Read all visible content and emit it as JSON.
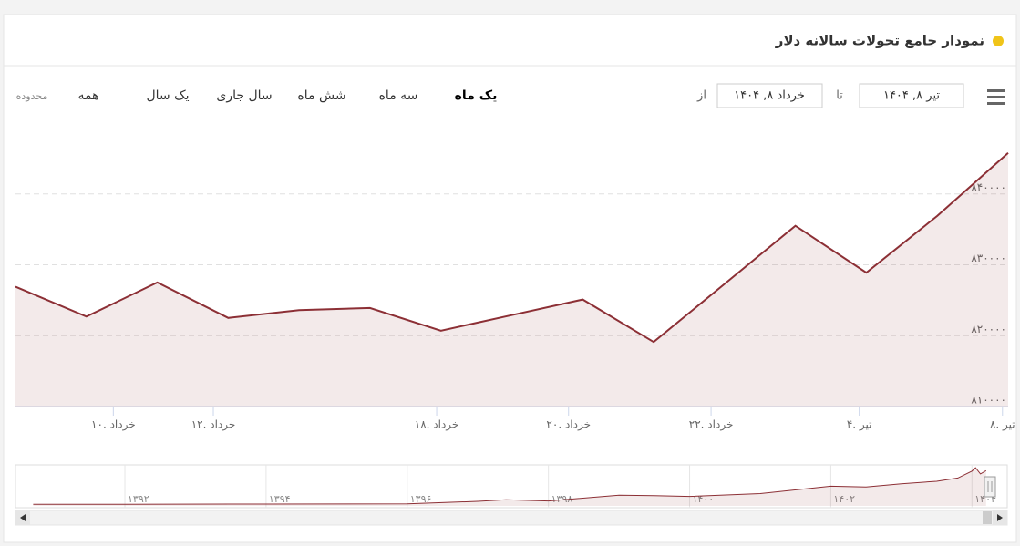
{
  "header": {
    "title": "نمودار جامع تحولات سالانه دلار"
  },
  "toolbar": {
    "from_label": "از",
    "from_date": "خرداد ۸, ۱۴۰۴",
    "to_label": "تا",
    "to_date": "تیر ۸, ۱۴۰۴",
    "ranges": [
      "یک ماه",
      "سه ماه",
      "شش ماه",
      "سال جاری",
      "یک سال",
      "همه"
    ],
    "range_label": "محدوده"
  },
  "chart_data": [
    {
      "type": "area",
      "color": "#8c2f35",
      "values": [
        826900,
        822700,
        827500,
        822500,
        823600,
        823900,
        820700,
        822900,
        825100,
        819100,
        827300,
        835500,
        828900,
        836900,
        845800
      ],
      "xlim": [
        0,
        14
      ],
      "xticks": [
        {
          "value": 1.38,
          "label": "۱۰. خرداد"
        },
        {
          "value": 2.79,
          "label": "۱۲. خرداد"
        },
        {
          "value": 5.94,
          "label": "۱۸. خرداد"
        },
        {
          "value": 7.8,
          "label": "۲۰. خرداد"
        },
        {
          "value": 9.81,
          "label": "۲۲. خرداد"
        },
        {
          "value": 11.9,
          "label": "۴. تیر"
        },
        {
          "value": 13.92,
          "label": "۸. تیر"
        }
      ],
      "ylim": [
        810000,
        850000
      ],
      "yticks": [
        {
          "value": 810000,
          "label": "۸۱۰۰۰۰"
        },
        {
          "value": 820000,
          "label": "۸۲۰۰۰۰"
        },
        {
          "value": 830000,
          "label": "۸۳۰۰۰۰"
        },
        {
          "value": 840000,
          "label": "۸۴۰۰۰۰"
        }
      ],
      "grid": true
    },
    {
      "type": "area",
      "color": "#8c2f35",
      "x": [
        1390.7,
        1392,
        1394,
        1396,
        1397,
        1397.4,
        1398,
        1399,
        1399.5,
        1400,
        1401,
        1402,
        1402.5,
        1403,
        1403.5,
        1403.8,
        1404,
        1404.05,
        1404.12,
        1404.2
      ],
      "values": [
        40000,
        40000,
        45000,
        50000,
        110000,
        150000,
        120000,
        260000,
        250000,
        230000,
        300000,
        480000,
        460000,
        540000,
        600000,
        680000,
        850000,
        930000,
        780000,
        860000
      ],
      "xlim": [
        1390.45,
        1404.5
      ],
      "xticks": [
        {
          "value": 1392,
          "label": "۱۳۹۲"
        },
        {
          "value": 1394,
          "label": "۱۳۹۴"
        },
        {
          "value": 1396,
          "label": "۱۳۹۶"
        },
        {
          "value": 1398,
          "label": "۱۳۹۸"
        },
        {
          "value": 1400,
          "label": "۱۴۰۰"
        },
        {
          "value": 1402,
          "label": "۱۴۰۲"
        },
        {
          "value": 1404,
          "label": "۱۴۰۴"
        }
      ],
      "ylim": [
        0,
        1000000
      ]
    }
  ]
}
